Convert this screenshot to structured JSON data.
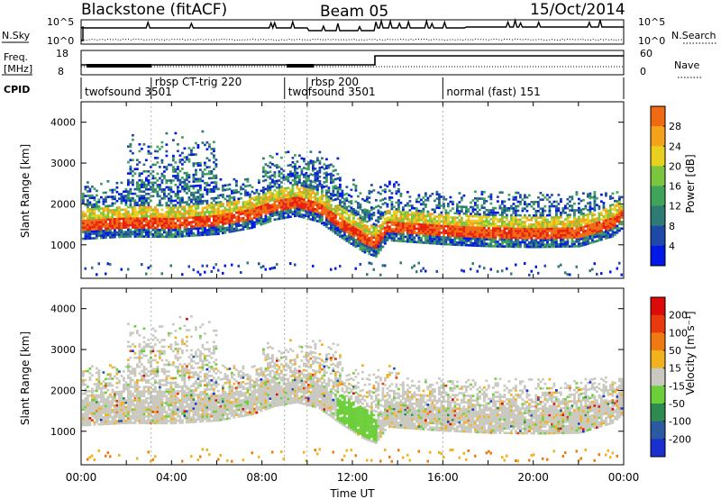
{
  "header": {
    "station": "Blackstone (fitACF)",
    "beam": "Beam 05",
    "date": "15/Oct/2014"
  },
  "top_panels": {
    "nsky_label": "N.Sky",
    "nsky_ticks": [
      "10^5",
      "10^0"
    ],
    "nsearch_label": "N.Search",
    "nsearch_ticks": [
      "10^5",
      "10^0"
    ],
    "freq_label_line1": "Freq.",
    "freq_label_line2": "[MHz]",
    "freq_ticks": [
      "18",
      "8"
    ],
    "nave_label": "Nave",
    "nave_ticks": [
      "60",
      "0"
    ],
    "cpid_label": "CPID",
    "cpid_segments": [
      {
        "label": "twofsound 3501",
        "start_hour": 0,
        "row": 1
      },
      {
        "label": "rbsp CT-trig 220",
        "start_hour": 3.1,
        "row": 0
      },
      {
        "label": "twofsound 3501",
        "start_hour": 9.0,
        "row": 1
      },
      {
        "label": "rbsp 200",
        "start_hour": 10.0,
        "row": 0
      },
      {
        "label": "normal (fast) 151",
        "start_hour": 16.0,
        "row": 1
      }
    ]
  },
  "chart_data": [
    {
      "type": "heatmap",
      "panel": "power",
      "ylabel": "Slant Range [km]",
      "xlabel": "Time UT",
      "ylim": [
        180,
        4500
      ],
      "xlim": [
        0,
        24
      ],
      "yticks": [
        "1000",
        "2000",
        "3000",
        "4000"
      ],
      "colorbar_label": "Power [dB]",
      "colorbar_ticks": [
        "28",
        "24",
        "20",
        "16",
        "12",
        "8",
        "4"
      ],
      "colors": [
        "#0018e8",
        "#1f49a8",
        "#2e7a74",
        "#3fa35a",
        "#7cc63f",
        "#e8d11e",
        "#f4a21a",
        "#f06a12",
        "#e8200e"
      ],
      "range_profile": [
        [
          0,
          1380
        ],
        [
          2,
          1440
        ],
        [
          4,
          1430
        ],
        [
          6,
          1500
        ],
        [
          7.5,
          1650
        ],
        [
          8.5,
          1850
        ],
        [
          9.5,
          1950
        ],
        [
          10.5,
          1800
        ],
        [
          11.5,
          1400
        ],
        [
          12.5,
          1050
        ],
        [
          13,
          950
        ],
        [
          13.5,
          1350
        ],
        [
          16,
          1250
        ],
        [
          18,
          1200
        ],
        [
          20,
          1180
        ],
        [
          22,
          1200
        ],
        [
          23.5,
          1450
        ],
        [
          24,
          1700
        ]
      ]
    },
    {
      "type": "heatmap",
      "panel": "velocity",
      "ylabel": "Slant Range [km]",
      "xlabel": "Time UT",
      "ylim": [
        180,
        4500
      ],
      "xlim": [
        0,
        24
      ],
      "yticks": [
        "1000",
        "2000",
        "3000",
        "4000"
      ],
      "xticks": [
        "00:00",
        "04:00",
        "08:00",
        "12:00",
        "16:00",
        "20:00",
        "00:00"
      ],
      "colorbar_label": "Velocity [m s⁻¹]",
      "colorbar_ticks": [
        "200",
        "100",
        "50",
        "15",
        "-15",
        "-50",
        "-100",
        "-200"
      ],
      "colors": [
        "#1a2fd0",
        "#2a5aa0",
        "#2e8a4e",
        "#6ccf3a",
        "#c9c9c0",
        "#f2b21e",
        "#f07a12",
        "#e83a0e",
        "#dd0a0a"
      ]
    }
  ]
}
